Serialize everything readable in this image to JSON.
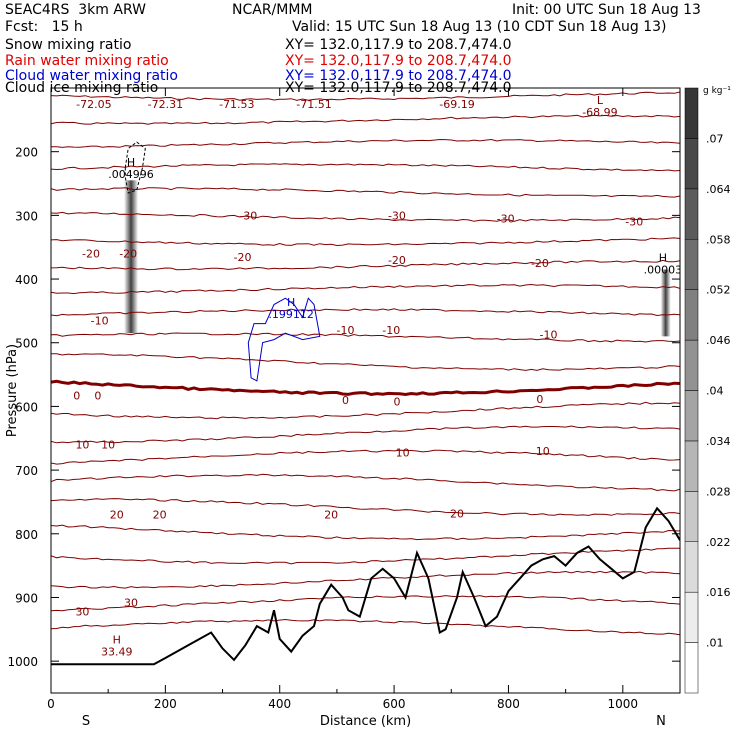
{
  "header": {
    "model": "SEAC4RS  3km ARW",
    "org": "NCAR/MMM",
    "init": "Init: 00 UTC Sun 18 Aug 13",
    "fcst": "Fcst:   15 h",
    "valid": "Valid: 15 UTC Sun 18 Aug 13 (10 CDT Sun 18 Aug 13)",
    "fields": [
      {
        "label": "Snow mixing ratio",
        "xy": "XY= 132.0,117.9 to 208.7,474.0",
        "color": "#000000"
      },
      {
        "label": "Rain water mixing ratio",
        "xy": "XY= 132.0,117.9 to 208.7,474.0",
        "color": "#e00000"
      },
      {
        "label": "Cloud water mixing ratio",
        "xy": "XY= 132.0,117.9 to 208.7,474.0",
        "color": "#0000cc"
      },
      {
        "label": "Cloud ice mixing ratio",
        "xy": "XY= 132.0,117.9 to 208.7,474.0",
        "color": "#000000"
      }
    ]
  },
  "chart_data": {
    "type": "cross-section",
    "xlabel": "Distance (km)",
    "ylabel": "Pressure (hPa)",
    "xlim": [
      0,
      1100
    ],
    "ylim": [
      1050,
      100
    ],
    "xticks": [
      0,
      200,
      400,
      600,
      800,
      1000
    ],
    "yticks": [
      200,
      300,
      400,
      500,
      600,
      700,
      800,
      900,
      1000
    ],
    "x_end_labels": {
      "left": "S",
      "right": "N"
    },
    "colorbar": {
      "unit": "g kg⁻¹",
      "ticks": [
        ".01",
        ".016",
        ".022",
        ".028",
        ".034",
        ".04",
        ".046",
        ".052",
        ".058",
        ".064",
        ".07"
      ]
    },
    "temperature_contours": {
      "color": "#800000",
      "labels": [
        {
          "text": "-72.05",
          "x": 75,
          "p": 125
        },
        {
          "text": "-72.31",
          "x": 200,
          "p": 125
        },
        {
          "text": "-71.53",
          "x": 325,
          "p": 125
        },
        {
          "text": "-71.51",
          "x": 460,
          "p": 125
        },
        {
          "text": "-69.19",
          "x": 710,
          "p": 125
        },
        {
          "text": "-30",
          "x": 345,
          "p": 300
        },
        {
          "text": "-30",
          "x": 605,
          "p": 300
        },
        {
          "text": "-30",
          "x": 795,
          "p": 305
        },
        {
          "text": "-30",
          "x": 1020,
          "p": 310
        },
        {
          "text": "-20",
          "x": 70,
          "p": 360
        },
        {
          "text": "-20",
          "x": 135,
          "p": 360
        },
        {
          "text": "-20",
          "x": 335,
          "p": 365
        },
        {
          "text": "-20",
          "x": 605,
          "p": 370
        },
        {
          "text": "-20",
          "x": 855,
          "p": 375
        },
        {
          "text": "-10",
          "x": 85,
          "p": 465
        },
        {
          "text": "-10",
          "x": 515,
          "p": 480
        },
        {
          "text": "-10",
          "x": 595,
          "p": 480
        },
        {
          "text": "-10",
          "x": 870,
          "p": 487
        },
        {
          "text": "0",
          "x": 45,
          "p": 583
        },
        {
          "text": "0",
          "x": 82,
          "p": 583
        },
        {
          "text": "0",
          "x": 515,
          "p": 590
        },
        {
          "text": "0",
          "x": 605,
          "p": 592
        },
        {
          "text": "0",
          "x": 855,
          "p": 588
        },
        {
          "text": "10",
          "x": 55,
          "p": 660
        },
        {
          "text": "10",
          "x": 100,
          "p": 660
        },
        {
          "text": "10",
          "x": 615,
          "p": 672
        },
        {
          "text": "10",
          "x": 860,
          "p": 670
        },
        {
          "text": "20",
          "x": 115,
          "p": 770
        },
        {
          "text": "20",
          "x": 190,
          "p": 770
        },
        {
          "text": "20",
          "x": 490,
          "p": 770
        },
        {
          "text": "20",
          "x": 710,
          "p": 768
        },
        {
          "text": "30",
          "x": 55,
          "p": 922
        },
        {
          "text": "30",
          "x": 140,
          "p": 908
        }
      ],
      "extrema": [
        {
          "type": "L",
          "value": "-68.99",
          "x": 960,
          "p": 138
        },
        {
          "type": "H",
          "value": "33.49",
          "x": 115,
          "p": 985
        }
      ]
    },
    "hydrometeor_maxima": [
      {
        "type": "H",
        "value": ".004996",
        "x": 140,
        "p": 235,
        "color": "#000000"
      },
      {
        "type": "H",
        "value": ".199112",
        "x": 420,
        "p": 455,
        "color": "#0000cc"
      },
      {
        "type": "H",
        "value": ".00003",
        "x": 1070,
        "p": 385,
        "color": "#000000"
      }
    ]
  }
}
